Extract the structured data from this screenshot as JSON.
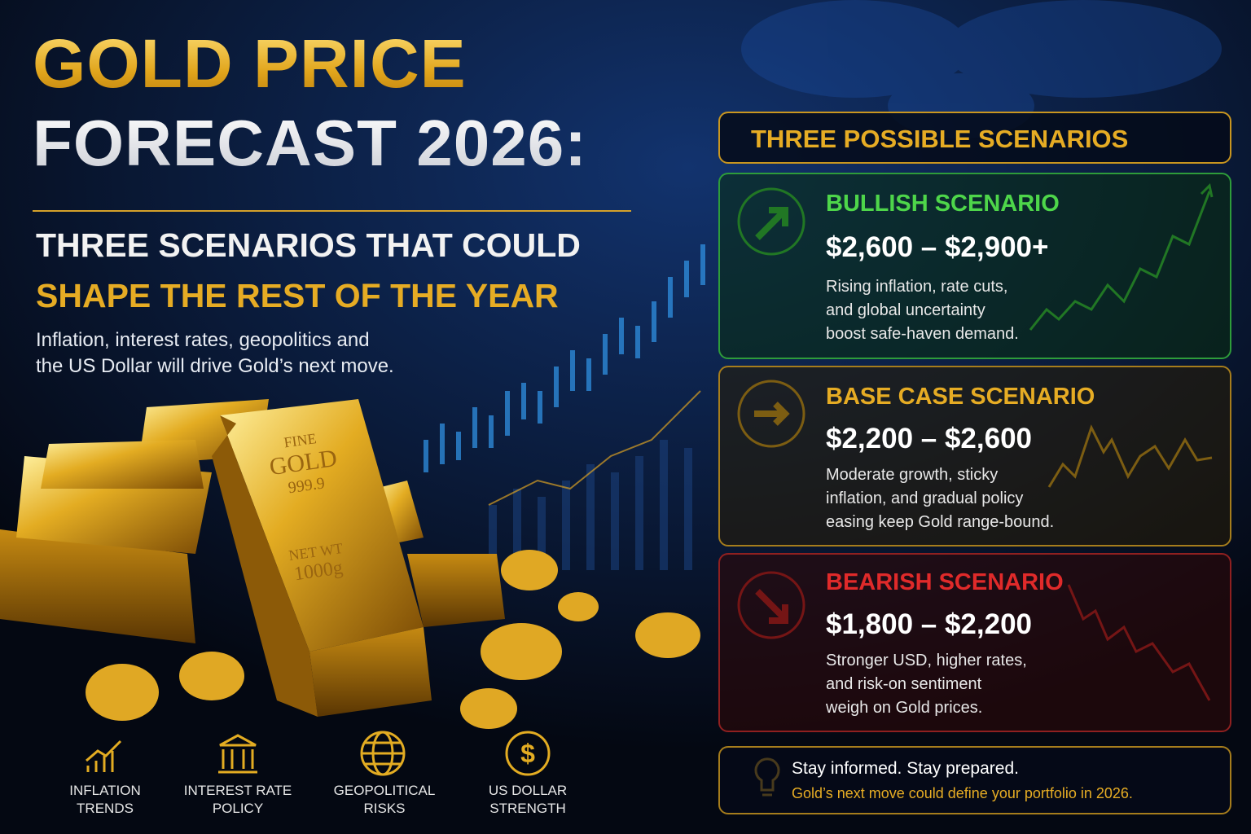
{
  "header": {
    "title_line1": "GOLD PRICE",
    "title_line2": "FORECAST 2026:",
    "subtitle_line1": "THREE SCENARIOS THAT COULD",
    "subtitle_line2": "SHAPE THE REST OF THE YEAR",
    "description_line1": "Inflation, interest rates, geopolitics and",
    "description_line2": "the US Dollar will drive Gold’s next move."
  },
  "bar_stamp": {
    "fine": "FINE",
    "gold": "GOLD",
    "purity": "999.9",
    "net_wt": "NET WT",
    "weight": "1000g"
  },
  "factors": [
    {
      "line1": "INFLATION",
      "line2": "TRENDS"
    },
    {
      "line1": "INTEREST RATE",
      "line2": "POLICY"
    },
    {
      "line1": "GEOPOLITICAL",
      "line2": "RISKS"
    },
    {
      "line1": "US DOLLAR",
      "line2": "STRENGTH"
    }
  ],
  "scenarios_title": "THREE POSSIBLE SCENARIOS",
  "scenarios": [
    {
      "name": "BULLISH SCENARIO",
      "range": "$2,600 – $2,900+",
      "description": [
        "Rising inflation, rate cuts,",
        "and global uncertainty",
        "boost safe-haven demand."
      ]
    },
    {
      "name": "BASE CASE SCENARIO",
      "range": "$2,200 – $2,600",
      "description": [
        "Moderate growth, sticky",
        "inflation, and gradual policy",
        "easing keep Gold range-bound."
      ]
    },
    {
      "name": "BEARISH SCENARIO",
      "range": "$1,800 – $2,200",
      "description": [
        "Stronger USD, higher rates,",
        "and risk-on sentiment",
        "weigh on Gold prices."
      ]
    }
  ],
  "footer": {
    "line1": "Stay informed. Stay prepared.",
    "line2": "Gold’s next move could define your portfolio in 2026."
  }
}
